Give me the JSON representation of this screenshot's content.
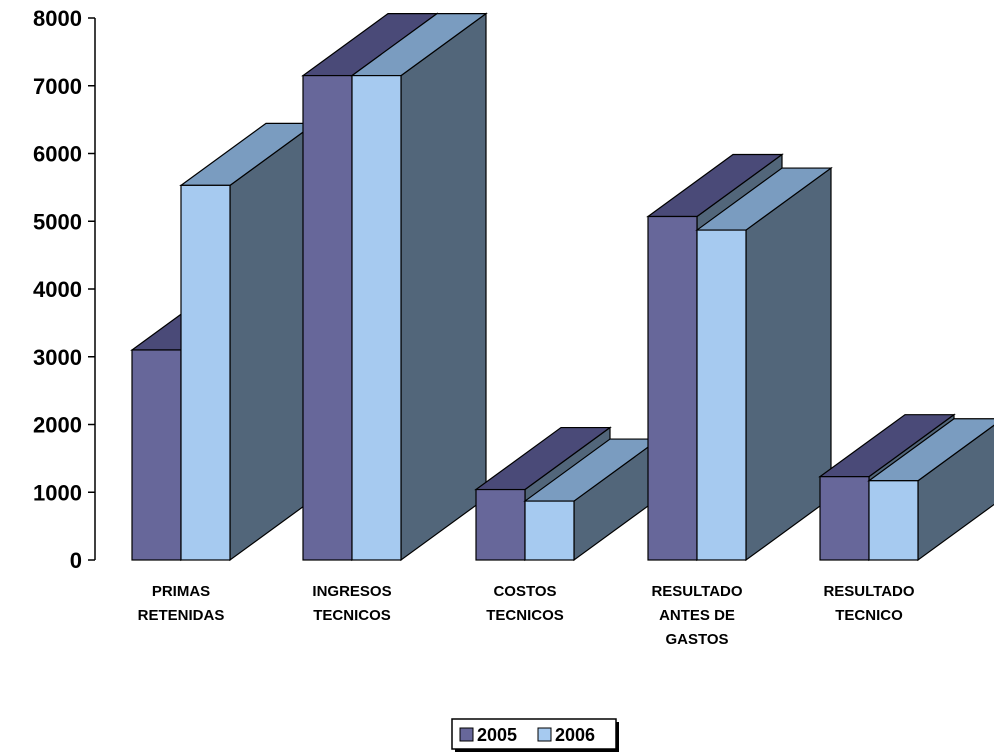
{
  "chart_data": {
    "type": "bar",
    "categories": [
      [
        "PRIMAS",
        "RETENIDAS"
      ],
      [
        "INGRESOS",
        "TECNICOS"
      ],
      [
        "COSTOS",
        "TECNICOS"
      ],
      [
        "RESULTADO",
        "ANTES DE",
        "GASTOS"
      ],
      [
        "RESULTADO",
        "TECNICO"
      ]
    ],
    "series": [
      {
        "name": "2005",
        "values": [
          3100,
          7150,
          1040,
          5070,
          1230
        ],
        "color": "#67679a"
      },
      {
        "name": "2006",
        "values": [
          5530,
          7150,
          870,
          4870,
          1170
        ],
        "color": "#a6caf0"
      }
    ],
    "yticks": [
      "0",
      "1000",
      "2000",
      "3000",
      "4000",
      "5000",
      "6000",
      "7000",
      "8000"
    ],
    "ylim": [
      0,
      8000
    ],
    "legend_position": "bottom-center",
    "style_3d": true
  }
}
